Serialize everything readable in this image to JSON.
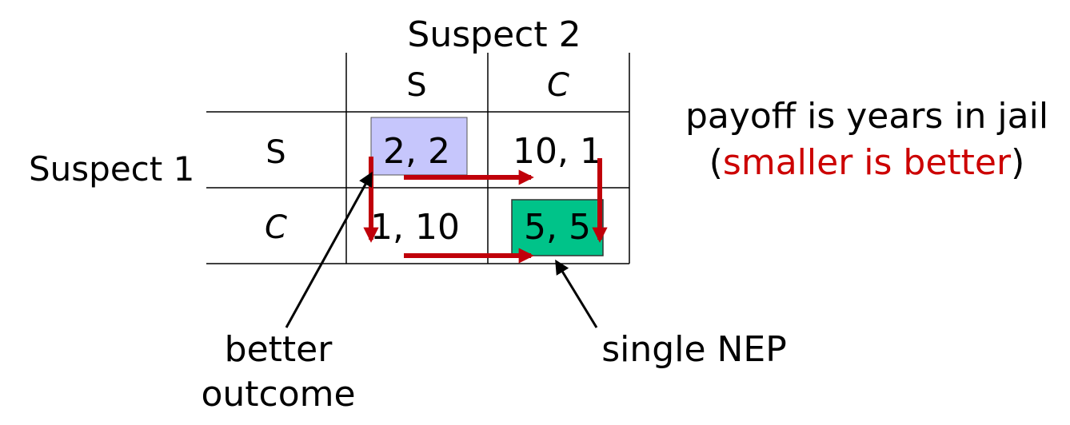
{
  "header": {
    "player2": "Suspect 2",
    "player1": "Suspect 1"
  },
  "strategies": {
    "col": [
      "S",
      "C"
    ],
    "row": [
      "S",
      "C"
    ]
  },
  "payoffs": [
    [
      "2, 2",
      "10, 1"
    ],
    [
      "1, 10",
      "5, 5"
    ]
  ],
  "note": {
    "line1": "payoff is years in jail",
    "paren_open": "(",
    "highlight": "smaller is better",
    "paren_close": ")"
  },
  "annotations": {
    "better_line1": "better",
    "better_line2": "outcome",
    "nep": "single NEP"
  },
  "colors": {
    "better_outcome_fill": "#c6c6fc",
    "nep_fill": "#00c389",
    "arrow": "#c0000a",
    "highlight_text": "#cc0000",
    "grid": "#000000"
  }
}
